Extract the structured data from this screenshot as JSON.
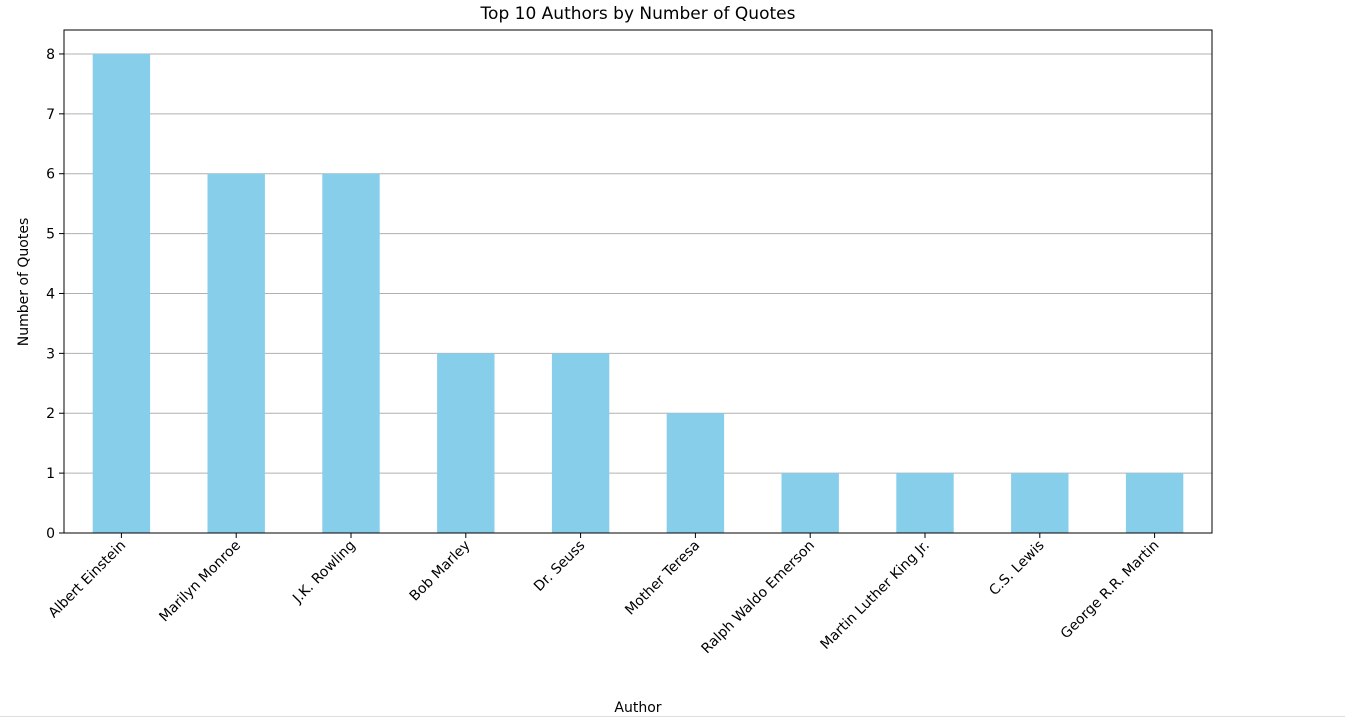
{
  "chart_data": {
    "type": "bar",
    "title": "Top 10 Authors by Number of Quotes",
    "xlabel": "Author",
    "ylabel": "Number of Quotes",
    "categories": [
      "Albert Einstein",
      "Marilyn Monroe",
      "J.K. Rowling",
      "Bob Marley",
      "Dr. Seuss",
      "Mother Teresa",
      "Ralph Waldo Emerson",
      "Martin Luther King Jr.",
      "C.S. Lewis",
      "George R.R. Martin"
    ],
    "values": [
      8,
      6,
      6,
      3,
      3,
      2,
      1,
      1,
      1,
      1
    ],
    "ylim": [
      0,
      8.4
    ],
    "yticks": [
      0,
      1,
      2,
      3,
      4,
      5,
      6,
      7,
      8
    ],
    "grid": "y",
    "bar_color": "#87ceeb",
    "legend": "none"
  }
}
